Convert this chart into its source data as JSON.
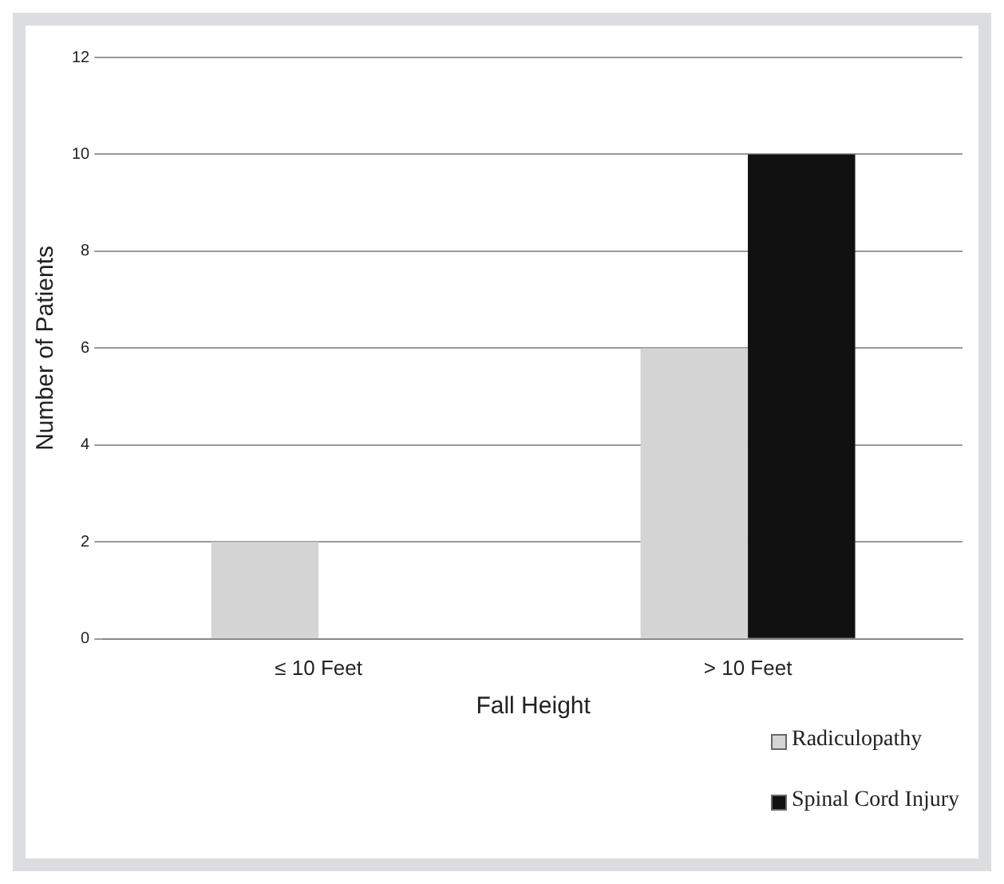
{
  "chart_data": {
    "type": "bar",
    "xlabel": "Fall Height",
    "ylabel": "Number of Patients",
    "categories": [
      "≤ 10 Feet",
      "> 10 Feet"
    ],
    "series": [
      {
        "name": "Radiculopathy",
        "color": "#d4d4d4",
        "values": [
          2,
          6
        ]
      },
      {
        "name": "Spinal Cord Injury",
        "color": "#111111",
        "values": [
          0,
          10
        ]
      }
    ],
    "ylim": [
      0,
      12
    ],
    "yticks": [
      0,
      2,
      4,
      6,
      8,
      10,
      12
    ],
    "grid": "y",
    "legend": "bottom right"
  }
}
